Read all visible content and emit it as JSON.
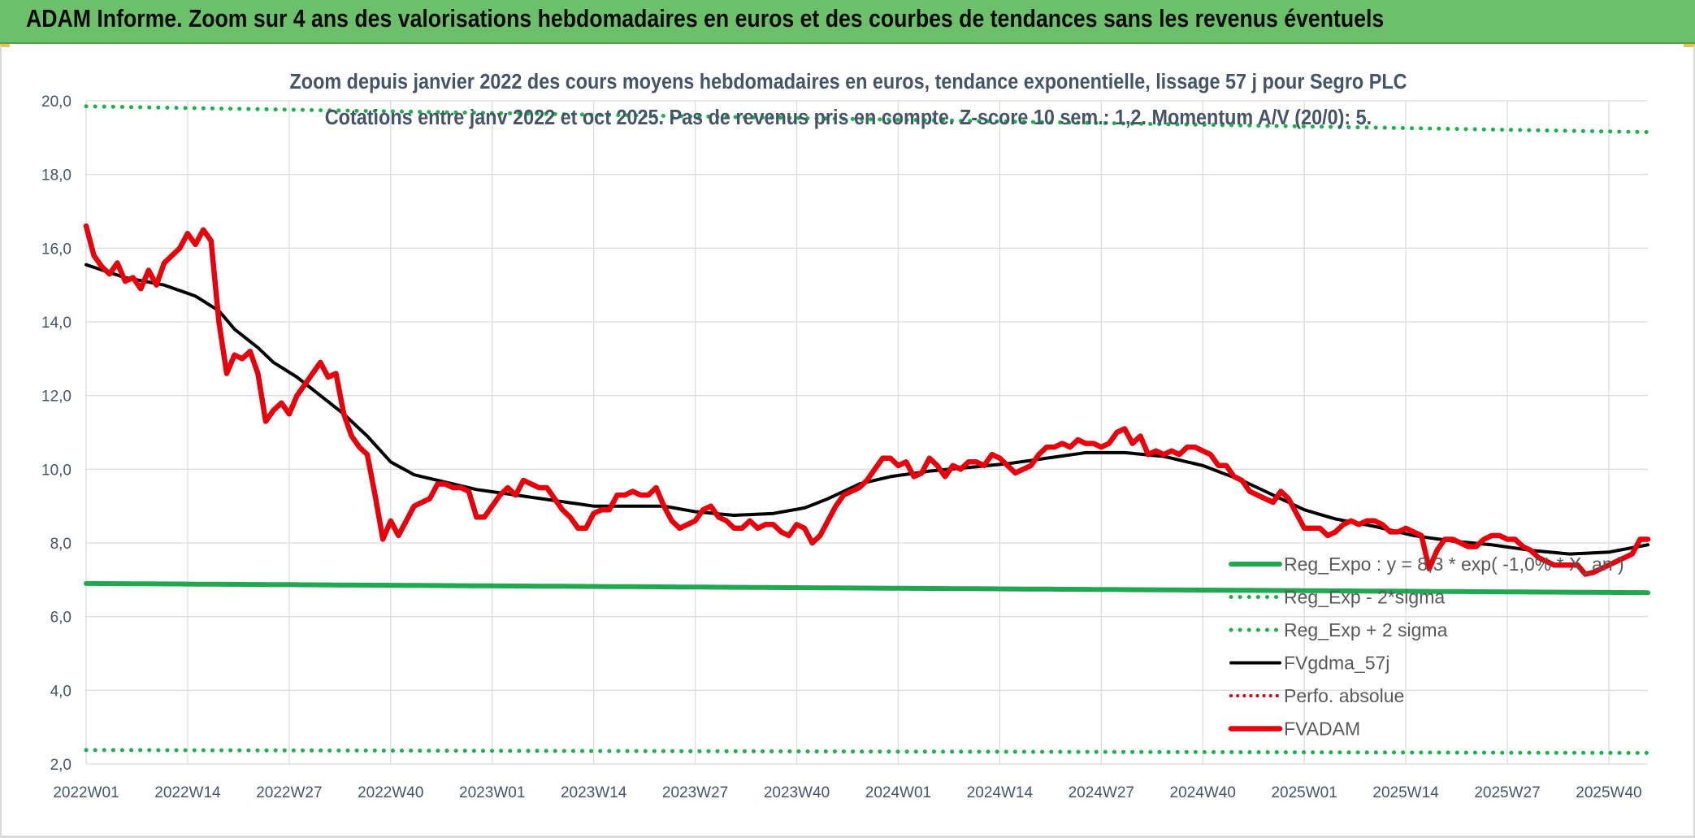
{
  "header": {
    "banner_title": "ADAM Informe. Zoom sur 4 ans des valorisations hebdomadaires en euros et des courbes de tendances sans les revenus éventuels"
  },
  "colors": {
    "banner_bg": "#6cc06a",
    "trend_green": "#1fa84f",
    "dotted_green": "#19b34a",
    "fv_black": "#000000",
    "fvadam_red": "#e8000b",
    "perfo_red": "#d0021b"
  },
  "chart_data": {
    "type": "line",
    "title": "Zoom depuis janvier 2022 des cours moyens hebdomadaires en euros, tendance exponentielle, lissage 57 j pour Segro PLC",
    "subtitle": "Cotations entre janv 2022 et oct 2025. Pas de revenus pris en compte. Z-score 10 sem.: 1,2. Momentum A/V (20/0): 5.",
    "xlabel": "",
    "ylabel": "",
    "ylim": [
      2.0,
      20.0
    ],
    "y_ticks": [
      "2,0",
      "4,0",
      "6,0",
      "8,0",
      "10,0",
      "12,0",
      "14,0",
      "16,0",
      "18,0",
      "20,0"
    ],
    "y_tick_values": [
      2,
      4,
      6,
      8,
      10,
      12,
      14,
      16,
      18,
      20
    ],
    "x_ticks": [
      "2022W01",
      "2022W14",
      "2022W27",
      "2022W40",
      "2023W01",
      "2023W14",
      "2023W27",
      "2023W40",
      "2024W01",
      "2024W14",
      "2024W27",
      "2024W40",
      "2025W01",
      "2025W14",
      "2025W27",
      "2025W40"
    ],
    "x_tick_index": [
      0,
      13,
      26,
      39,
      52,
      65,
      78,
      91,
      104,
      117,
      130,
      143,
      156,
      169,
      182,
      195
    ],
    "x_count": 201,
    "legend_position": "bottom-right",
    "series": [
      {
        "name": "Reg_Expo : y = 8,3 * exp( -1,0% * X_an )",
        "style": "solid-green",
        "keyframes": [
          [
            0,
            6.9
          ],
          [
            200,
            6.65
          ]
        ]
      },
      {
        "name": "Reg_Exp - 2*sigma",
        "style": "dotted-green",
        "keyframes": [
          [
            0,
            2.38
          ],
          [
            200,
            2.3
          ]
        ]
      },
      {
        "name": "Reg_Exp + 2 sigma",
        "style": "dotted-green",
        "keyframes": [
          [
            0,
            19.85
          ],
          [
            200,
            19.15
          ]
        ]
      },
      {
        "name": "FVgdma_57j",
        "style": "solid-black",
        "keyframes": [
          [
            0,
            15.55
          ],
          [
            5,
            15.2
          ],
          [
            10,
            15.0
          ],
          [
            14,
            14.7
          ],
          [
            17,
            14.3
          ],
          [
            19,
            13.8
          ],
          [
            22,
            13.3
          ],
          [
            24,
            12.9
          ],
          [
            27,
            12.5
          ],
          [
            30,
            12.0
          ],
          [
            33,
            11.5
          ],
          [
            36,
            10.9
          ],
          [
            39,
            10.2
          ],
          [
            42,
            9.85
          ],
          [
            45,
            9.7
          ],
          [
            50,
            9.45
          ],
          [
            55,
            9.3
          ],
          [
            60,
            9.15
          ],
          [
            65,
            9.0
          ],
          [
            70,
            9.0
          ],
          [
            74,
            9.0
          ],
          [
            78,
            8.85
          ],
          [
            83,
            8.75
          ],
          [
            88,
            8.8
          ],
          [
            92,
            8.95
          ],
          [
            95,
            9.2
          ],
          [
            99,
            9.6
          ],
          [
            103,
            9.8
          ],
          [
            108,
            9.95
          ],
          [
            113,
            10.05
          ],
          [
            118,
            10.15
          ],
          [
            123,
            10.3
          ],
          [
            128,
            10.45
          ],
          [
            133,
            10.45
          ],
          [
            138,
            10.35
          ],
          [
            143,
            10.1
          ],
          [
            148,
            9.7
          ],
          [
            152,
            9.3
          ],
          [
            156,
            8.9
          ],
          [
            160,
            8.65
          ],
          [
            165,
            8.45
          ],
          [
            170,
            8.2
          ],
          [
            175,
            8.05
          ],
          [
            180,
            7.95
          ],
          [
            185,
            7.8
          ],
          [
            190,
            7.7
          ],
          [
            195,
            7.75
          ],
          [
            200,
            7.95
          ]
        ]
      },
      {
        "name": "Perfo. absolue",
        "style": "dotted-red",
        "keyframes": []
      },
      {
        "name": "FVADAM",
        "style": "solid-red-thick",
        "keyframes": [
          [
            0,
            16.6
          ],
          [
            1,
            15.8
          ],
          [
            2,
            15.5
          ],
          [
            3,
            15.3
          ],
          [
            4,
            15.6
          ],
          [
            5,
            15.1
          ],
          [
            6,
            15.2
          ],
          [
            7,
            14.9
          ],
          [
            8,
            15.4
          ],
          [
            9,
            15.0
          ],
          [
            10,
            15.6
          ],
          [
            11,
            15.8
          ],
          [
            12,
            16.0
          ],
          [
            13,
            16.4
          ],
          [
            14,
            16.1
          ],
          [
            15,
            16.5
          ],
          [
            16,
            16.2
          ],
          [
            17,
            14.0
          ],
          [
            18,
            12.6
          ],
          [
            19,
            13.1
          ],
          [
            20,
            13.0
          ],
          [
            21,
            13.2
          ],
          [
            22,
            12.6
          ],
          [
            23,
            11.3
          ],
          [
            24,
            11.6
          ],
          [
            25,
            11.8
          ],
          [
            26,
            11.5
          ],
          [
            27,
            12.0
          ],
          [
            28,
            12.3
          ],
          [
            29,
            12.6
          ],
          [
            30,
            12.9
          ],
          [
            31,
            12.5
          ],
          [
            32,
            12.6
          ],
          [
            33,
            11.5
          ],
          [
            34,
            10.9
          ],
          [
            35,
            10.6
          ],
          [
            36,
            10.4
          ],
          [
            37,
            9.3
          ],
          [
            38,
            8.1
          ],
          [
            39,
            8.6
          ],
          [
            40,
            8.2
          ],
          [
            41,
            8.6
          ],
          [
            42,
            9.0
          ],
          [
            43,
            9.1
          ],
          [
            44,
            9.2
          ],
          [
            45,
            9.6
          ],
          [
            46,
            9.6
          ],
          [
            47,
            9.5
          ],
          [
            48,
            9.5
          ],
          [
            49,
            9.4
          ],
          [
            50,
            8.7
          ],
          [
            51,
            8.7
          ],
          [
            52,
            9.0
          ],
          [
            53,
            9.3
          ],
          [
            54,
            9.5
          ],
          [
            55,
            9.3
          ],
          [
            56,
            9.7
          ],
          [
            57,
            9.6
          ],
          [
            58,
            9.5
          ],
          [
            59,
            9.5
          ],
          [
            60,
            9.2
          ],
          [
            61,
            8.9
          ],
          [
            62,
            8.7
          ],
          [
            63,
            8.4
          ],
          [
            64,
            8.4
          ],
          [
            65,
            8.8
          ],
          [
            66,
            8.9
          ],
          [
            67,
            8.9
          ],
          [
            68,
            9.3
          ],
          [
            69,
            9.3
          ],
          [
            70,
            9.4
          ],
          [
            71,
            9.3
          ],
          [
            72,
            9.3
          ],
          [
            73,
            9.5
          ],
          [
            74,
            9.0
          ],
          [
            75,
            8.6
          ],
          [
            76,
            8.4
          ],
          [
            77,
            8.5
          ],
          [
            78,
            8.6
          ],
          [
            79,
            8.9
          ],
          [
            80,
            9.0
          ],
          [
            81,
            8.7
          ],
          [
            82,
            8.6
          ],
          [
            83,
            8.4
          ],
          [
            84,
            8.4
          ],
          [
            85,
            8.6
          ],
          [
            86,
            8.4
          ],
          [
            87,
            8.5
          ],
          [
            88,
            8.5
          ],
          [
            89,
            8.3
          ],
          [
            90,
            8.2
          ],
          [
            91,
            8.5
          ],
          [
            92,
            8.4
          ],
          [
            93,
            8.0
          ],
          [
            94,
            8.2
          ],
          [
            95,
            8.6
          ],
          [
            96,
            9.0
          ],
          [
            97,
            9.3
          ],
          [
            98,
            9.4
          ],
          [
            99,
            9.5
          ],
          [
            100,
            9.7
          ],
          [
            101,
            10.0
          ],
          [
            102,
            10.3
          ],
          [
            103,
            10.3
          ],
          [
            104,
            10.1
          ],
          [
            105,
            10.2
          ],
          [
            106,
            9.8
          ],
          [
            107,
            9.9
          ],
          [
            108,
            10.3
          ],
          [
            109,
            10.1
          ],
          [
            110,
            9.8
          ],
          [
            111,
            10.1
          ],
          [
            112,
            10.0
          ],
          [
            113,
            10.2
          ],
          [
            114,
            10.2
          ],
          [
            115,
            10.1
          ],
          [
            116,
            10.4
          ],
          [
            117,
            10.3
          ],
          [
            118,
            10.1
          ],
          [
            119,
            9.9
          ],
          [
            120,
            10.0
          ],
          [
            121,
            10.1
          ],
          [
            122,
            10.4
          ],
          [
            123,
            10.6
          ],
          [
            124,
            10.6
          ],
          [
            125,
            10.7
          ],
          [
            126,
            10.6
          ],
          [
            127,
            10.8
          ],
          [
            128,
            10.7
          ],
          [
            129,
            10.7
          ],
          [
            130,
            10.6
          ],
          [
            131,
            10.7
          ],
          [
            132,
            11.0
          ],
          [
            133,
            11.1
          ],
          [
            134,
            10.7
          ],
          [
            135,
            10.9
          ],
          [
            136,
            10.4
          ],
          [
            137,
            10.5
          ],
          [
            138,
            10.4
          ],
          [
            139,
            10.5
          ],
          [
            140,
            10.4
          ],
          [
            141,
            10.6
          ],
          [
            142,
            10.6
          ],
          [
            143,
            10.5
          ],
          [
            144,
            10.4
          ],
          [
            145,
            10.1
          ],
          [
            146,
            10.1
          ],
          [
            147,
            9.8
          ],
          [
            148,
            9.7
          ],
          [
            149,
            9.4
          ],
          [
            150,
            9.3
          ],
          [
            151,
            9.2
          ],
          [
            152,
            9.1
          ],
          [
            153,
            9.4
          ],
          [
            154,
            9.2
          ],
          [
            155,
            8.8
          ],
          [
            156,
            8.4
          ],
          [
            157,
            8.4
          ],
          [
            158,
            8.4
          ],
          [
            159,
            8.2
          ],
          [
            160,
            8.3
          ],
          [
            161,
            8.5
          ],
          [
            162,
            8.6
          ],
          [
            163,
            8.5
          ],
          [
            164,
            8.6
          ],
          [
            165,
            8.6
          ],
          [
            166,
            8.5
          ],
          [
            167,
            8.3
          ],
          [
            168,
            8.3
          ],
          [
            169,
            8.4
          ],
          [
            170,
            8.3
          ],
          [
            171,
            8.2
          ],
          [
            172,
            7.3
          ],
          [
            173,
            7.8
          ],
          [
            174,
            8.1
          ],
          [
            175,
            8.1
          ],
          [
            176,
            8.0
          ],
          [
            177,
            7.9
          ],
          [
            178,
            7.9
          ],
          [
            179,
            8.1
          ],
          [
            180,
            8.2
          ],
          [
            181,
            8.2
          ],
          [
            182,
            8.1
          ],
          [
            183,
            8.1
          ],
          [
            184,
            7.9
          ],
          [
            185,
            7.8
          ],
          [
            186,
            7.6
          ],
          [
            187,
            7.5
          ],
          [
            188,
            7.4
          ],
          [
            189,
            7.4
          ],
          [
            190,
            7.4
          ],
          [
            191,
            7.4
          ],
          [
            192,
            7.15
          ],
          [
            193,
            7.2
          ],
          [
            194,
            7.3
          ],
          [
            195,
            7.4
          ],
          [
            196,
            7.5
          ],
          [
            197,
            7.6
          ],
          [
            198,
            7.7
          ],
          [
            199,
            8.1
          ],
          [
            200,
            8.1
          ]
        ]
      }
    ]
  }
}
